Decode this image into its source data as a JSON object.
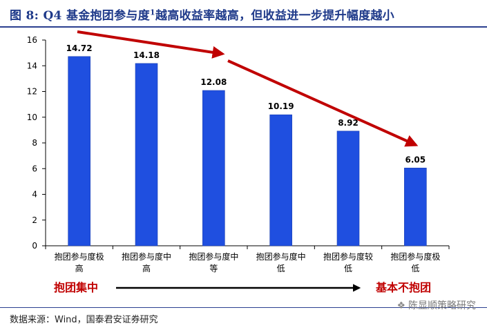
{
  "header": {
    "title": "图 8: Q4 基金抱团参与度",
    "title_sup": "1",
    "title_tail": "越高收益率越高，但收益进一步提升幅度越小"
  },
  "chart_data": {
    "type": "bar",
    "categories": [
      [
        "抱团参与度极",
        "高"
      ],
      [
        "抱团参与度中",
        "高"
      ],
      [
        "抱团参与度中",
        "等"
      ],
      [
        "抱团参与度中",
        "低"
      ],
      [
        "抱团参与度较",
        "低"
      ],
      [
        "抱团参与度极",
        "低"
      ]
    ],
    "values": [
      14.72,
      14.18,
      12.08,
      10.19,
      8.92,
      6.05
    ],
    "value_labels": [
      "14.72",
      "14.18",
      "12.08",
      "10.19",
      "8.92",
      "6.05"
    ],
    "ylim": [
      0,
      16
    ],
    "yticks": [
      "0",
      "2",
      "4",
      "6",
      "8",
      "10",
      "12",
      "14",
      "16"
    ],
    "bar_color": "#1f4fe0",
    "trend_arrow_color": "#c00000",
    "annotation_left": "抱团集中",
    "annotation_right": "基本不抱团",
    "annotation_color": "#c00000",
    "grid": false
  },
  "footer": {
    "source": "数据来源：Wind，国泰君安证券研究",
    "watermark": "陈显顺策略研究",
    "watermark_icon": "wechat-icon"
  }
}
